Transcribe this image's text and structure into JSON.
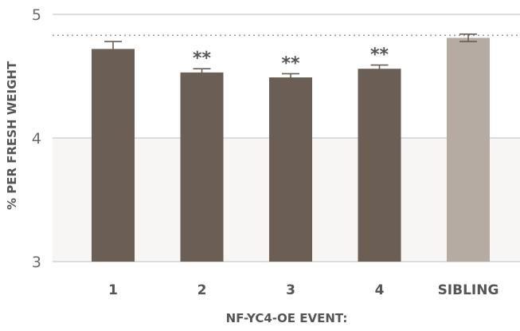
{
  "chart_data": {
    "type": "bar",
    "title": "",
    "xlabel": "NF-YC4-OE EVENT:",
    "ylabel": "% PER FRESH WEIGHT",
    "ylim": [
      3,
      5
    ],
    "yticks": [
      3,
      4,
      5
    ],
    "categories": [
      "1",
      "2",
      "3",
      "4",
      "SIBLING"
    ],
    "values": [
      4.72,
      4.53,
      4.49,
      4.56,
      4.81
    ],
    "errors": [
      0.06,
      0.03,
      0.03,
      0.03,
      0.03
    ],
    "significance": [
      "",
      "**",
      "**",
      "**",
      ""
    ],
    "reference_line": 4.83,
    "grid": true,
    "colors": {
      "bar": "#6b5f55",
      "control": "#b5aba3",
      "error": "#6b5f55",
      "grid": "#bdbdbd",
      "band": "#f7f6f5",
      "reference": "#9a9a9a"
    }
  }
}
